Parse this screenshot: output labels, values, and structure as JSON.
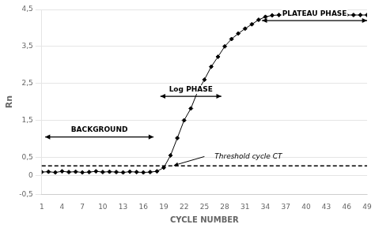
{
  "chart_data": {
    "type": "line",
    "x_label": "CYCLE NUMBER",
    "y_label": "Rn",
    "x": [
      1,
      2,
      3,
      4,
      5,
      6,
      7,
      8,
      9,
      10,
      11,
      12,
      13,
      14,
      15,
      16,
      17,
      18,
      19,
      20,
      21,
      22,
      23,
      24,
      25,
      26,
      27,
      28,
      29,
      30,
      31,
      32,
      33,
      34,
      35,
      36,
      37,
      38,
      39,
      40,
      41,
      42,
      43,
      44,
      45,
      46,
      47,
      48,
      49
    ],
    "values": [
      0.1,
      0.11,
      0.09,
      0.12,
      0.1,
      0.11,
      0.09,
      0.1,
      0.12,
      0.1,
      0.11,
      0.1,
      0.09,
      0.11,
      0.1,
      0.09,
      0.1,
      0.12,
      0.22,
      0.55,
      1.02,
      1.5,
      1.82,
      2.28,
      2.6,
      2.95,
      3.22,
      3.5,
      3.7,
      3.85,
      3.98,
      4.1,
      4.22,
      4.3,
      4.34,
      4.35,
      4.35,
      4.35,
      4.35,
      4.35,
      4.35,
      4.35,
      4.35,
      4.35,
      4.35,
      4.35,
      4.35,
      4.35,
      4.35
    ],
    "color": "#000000",
    "marker": "diamond",
    "xlim": [
      1,
      49
    ],
    "xticks": [
      1,
      4,
      7,
      10,
      13,
      16,
      19,
      22,
      25,
      28,
      31,
      34,
      37,
      40,
      43,
      46,
      49
    ],
    "ylim": [
      -0.5,
      4.5
    ],
    "yticks": [
      {
        "value": -0.5,
        "label": "-0,5"
      },
      0,
      {
        "value": 0.5,
        "label": "0,5"
      },
      {
        "value": 1.5,
        "label": "1,5"
      },
      {
        "value": 2.5,
        "label": "2,5"
      },
      {
        "value": 3.5,
        "label": "3,5"
      },
      {
        "value": 4.5,
        "label": "4,5"
      }
    ],
    "grid": true,
    "legend": false,
    "threshold": 0.27,
    "annotations": [
      {
        "text": "BACKGROUND",
        "x1": 1.5,
        "x2": 17.5,
        "y": 1.05
      },
      {
        "text": "Log PHASE",
        "x1": 18.5,
        "x2": 27.5,
        "y": 2.15
      },
      {
        "text": "PLATEAU PHASE",
        "x1": 33.5,
        "x2": 49.0,
        "y": 4.2
      },
      {
        "text": "Threshold cycle CT",
        "x": 26.5,
        "y": 0.52,
        "arrow_from": [
          25,
          0.52
        ],
        "arrow_to": [
          20.5,
          0.28
        ]
      }
    ]
  }
}
